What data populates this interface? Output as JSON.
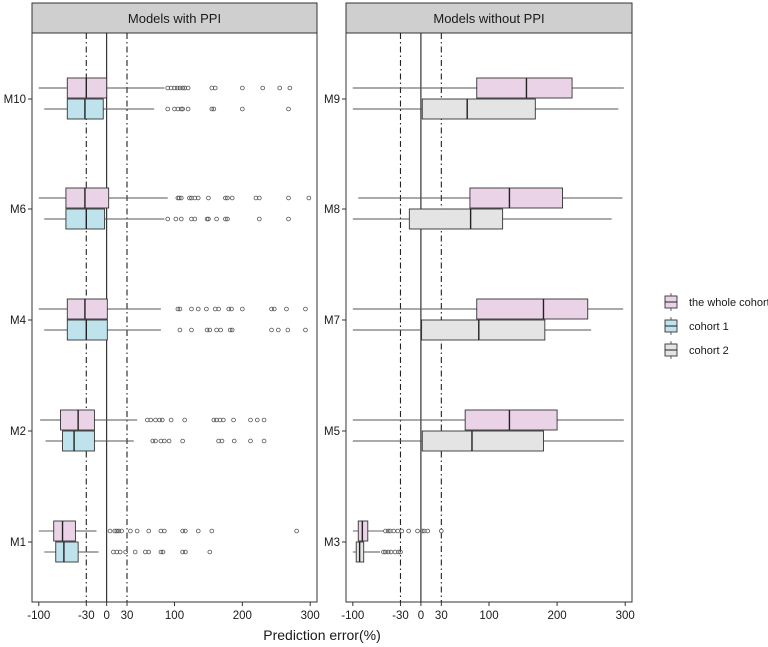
{
  "chart_data": {
    "type": "boxplot",
    "xlabel": "Prediction error(%)",
    "xlim": [
      -110,
      310
    ],
    "x_ticks": [
      -100,
      -30,
      0,
      30,
      100,
      200,
      300
    ],
    "x_tick_labels": [
      "-100",
      "-30",
      "0",
      "30",
      "100",
      "200",
      "300"
    ],
    "reference_lines": [
      {
        "value": -30,
        "style": "dashdot"
      },
      {
        "value": 0,
        "style": "solid"
      },
      {
        "value": 30,
        "style": "dashdot"
      }
    ],
    "legend": {
      "position": "right",
      "entries": [
        {
          "key": "whole",
          "label": "the whole cohort",
          "color": "#ead3e7"
        },
        {
          "key": "c1",
          "label": "cohort 1",
          "color": "#bfe3ec"
        },
        {
          "key": "c2",
          "label": "cohort 2",
          "color": "#e4e4e4"
        }
      ]
    },
    "panels": [
      {
        "title": "Models with PPI",
        "categories": [
          "M10",
          "M6",
          "M4",
          "M2",
          "M1"
        ],
        "groups": [
          {
            "model": "M10",
            "series": "whole",
            "whisker_low": -100,
            "q1": -58,
            "median": -30,
            "q3": 0,
            "whisker_high": 85,
            "outliers": [
              90,
              95,
              100,
              104,
              108,
              112,
              115,
              120,
              155,
              160,
              200,
              230,
              255,
              270
            ]
          },
          {
            "model": "M10",
            "series": "c1",
            "whisker_low": -92,
            "q1": -58,
            "median": -32,
            "q3": -5,
            "whisker_high": 70,
            "outliers": [
              90,
              100,
              105,
              110,
              112,
              120,
              155,
              158,
              200,
              268
            ]
          },
          {
            "model": "M6",
            "series": "whole",
            "whisker_low": -100,
            "q1": -60,
            "median": -32,
            "q3": 3,
            "whisker_high": 90,
            "outliers": [
              105,
              107,
              110,
              122,
              125,
              130,
              135,
              150,
              175,
              178,
              185,
              220,
              225,
              268,
              298
            ]
          },
          {
            "model": "M6",
            "series": "c1",
            "whisker_low": -92,
            "q1": -60,
            "median": -30,
            "q3": -3,
            "whisker_high": 85,
            "outliers": [
              90,
              102,
              110,
              125,
              130,
              148,
              150,
              162,
              175,
              178,
              225,
              268
            ]
          },
          {
            "model": "M4",
            "series": "whole",
            "whisker_low": -100,
            "q1": -58,
            "median": -32,
            "q3": 1,
            "whisker_high": 80,
            "outliers": [
              105,
              108,
              125,
              135,
              147,
              160,
              165,
              180,
              184,
              200,
              243,
              247,
              265,
              293
            ]
          },
          {
            "model": "M4",
            "series": "c1",
            "whisker_low": -92,
            "q1": -58,
            "median": -30,
            "q3": 1,
            "whisker_high": 80,
            "outliers": [
              108,
              125,
              148,
              152,
              162,
              168,
              182,
              185,
              243,
              253,
              267,
              293
            ]
          },
          {
            "model": "M2",
            "series": "whole",
            "whisker_low": -98,
            "q1": -68,
            "median": -42,
            "q3": -18,
            "whisker_high": 45,
            "outliers": [
              60,
              65,
              72,
              78,
              82,
              95,
              115,
              158,
              162,
              167,
              172,
              187,
              212,
              222,
              232
            ]
          },
          {
            "model": "M2",
            "series": "c1",
            "whisker_low": -90,
            "q1": -65,
            "median": -48,
            "q3": -18,
            "whisker_high": 40,
            "outliers": [
              68,
              72,
              80,
              85,
              92,
              112,
              165,
              170,
              188,
              212,
              232
            ]
          },
          {
            "model": "M1",
            "series": "whole",
            "whisker_low": -100,
            "q1": -78,
            "median": -65,
            "q3": -46,
            "whisker_high": -15,
            "outliers": [
              5,
              12,
              15,
              18,
              22,
              35,
              45,
              62,
              80,
              85,
              112,
              116,
              135,
              155,
              280
            ]
          },
          {
            "model": "M1",
            "series": "c1",
            "whisker_low": -92,
            "q1": -75,
            "median": -63,
            "q3": -42,
            "whisker_high": -12,
            "outliers": [
              10,
              15,
              20,
              28,
              42,
              57,
              62,
              80,
              83,
              112,
              116,
              152
            ]
          }
        ]
      },
      {
        "title": "Models without PPI",
        "categories": [
          "M9",
          "M8",
          "M7",
          "M5",
          "M3"
        ],
        "groups": [
          {
            "model": "M9",
            "series": "whole",
            "whisker_low": -100,
            "q1": 82,
            "median": 155,
            "q3": 222,
            "whisker_high": 298,
            "outliers": []
          },
          {
            "model": "M9",
            "series": "c2",
            "whisker_low": -100,
            "q1": 2,
            "median": 68,
            "q3": 168,
            "whisker_high": 290,
            "outliers": []
          },
          {
            "model": "M8",
            "series": "whole",
            "whisker_low": -92,
            "q1": 72,
            "median": 130,
            "q3": 208,
            "whisker_high": 296,
            "outliers": []
          },
          {
            "model": "M8",
            "series": "c2",
            "whisker_low": -100,
            "q1": -17,
            "median": 73,
            "q3": 120,
            "whisker_high": 280,
            "outliers": []
          },
          {
            "model": "M7",
            "series": "whole",
            "whisker_low": -100,
            "q1": 82,
            "median": 180,
            "q3": 245,
            "whisker_high": 297,
            "outliers": []
          },
          {
            "model": "M7",
            "series": "c2",
            "whisker_low": -100,
            "q1": 1,
            "median": 85,
            "q3": 182,
            "whisker_high": 250,
            "outliers": []
          },
          {
            "model": "M5",
            "series": "whole",
            "whisker_low": -100,
            "q1": 65,
            "median": 130,
            "q3": 200,
            "whisker_high": 298,
            "outliers": []
          },
          {
            "model": "M5",
            "series": "c2",
            "whisker_low": -100,
            "q1": 2,
            "median": 75,
            "q3": 180,
            "whisker_high": 298,
            "outliers": []
          },
          {
            "model": "M3",
            "series": "whole",
            "whisker_low": -100,
            "q1": -92,
            "median": -86,
            "q3": -78,
            "whisker_high": -55,
            "outliers": [
              -52,
              -48,
              -45,
              -40,
              -34,
              -28,
              -18,
              -5,
              2,
              5,
              10,
              30
            ]
          },
          {
            "model": "M3",
            "series": "c2",
            "whisker_low": -100,
            "q1": -95,
            "median": -90,
            "q3": -84,
            "whisker_high": -60,
            "outliers": [
              -55,
              -52,
              -48,
              -44,
              -38,
              -33,
              -30
            ]
          }
        ]
      }
    ]
  }
}
